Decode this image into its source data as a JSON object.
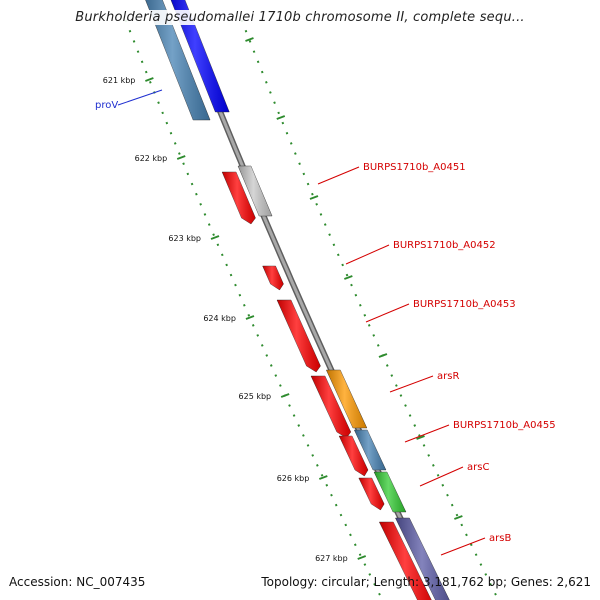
{
  "title": "Burkholderia pseudomallei 1710b chromosome II, complete sequ...",
  "accession": "Accession: NC_007435",
  "summary": "Topology: circular; Length: 3,181,762 bp; Genes: 2,621",
  "colors": {
    "backbone": "#8c8c8c",
    "tick": "#2e8b2e",
    "label_red": "#d40000",
    "label_blue": "#1f2fd0",
    "gene_red": "#ff0000",
    "gene_gray": "#c8c8c8",
    "gene_orange": "#ff9900",
    "gene_steel": "#4682b4",
    "gene_green": "#33cc33",
    "gene_slate": "#5a5aa6",
    "gene_blue": "#0000ff"
  },
  "ticks": [
    "621 kbp",
    "622 kbp",
    "623 kbp",
    "624 kbp",
    "625 kbp",
    "626 kbp",
    "627 kbp"
  ],
  "gene_labels": [
    {
      "text": "proV",
      "color": "label_blue"
    },
    {
      "text": "BURPS1710b_A0451",
      "color": "label_red"
    },
    {
      "text": "BURPS1710b_A0452",
      "color": "label_red"
    },
    {
      "text": "BURPS1710b_A0453",
      "color": "label_red"
    },
    {
      "text": "arsR",
      "color": "label_red"
    },
    {
      "text": "BURPS1710b_A0455",
      "color": "label_red"
    },
    {
      "text": "arsC",
      "color": "label_red"
    },
    {
      "text": "arsB",
      "color": "label_red"
    }
  ]
}
